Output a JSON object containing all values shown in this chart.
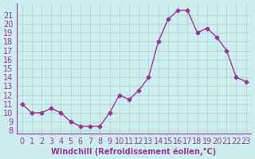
{
  "x": [
    0,
    1,
    2,
    3,
    4,
    5,
    6,
    7,
    8,
    9,
    10,
    11,
    12,
    13,
    14,
    15,
    16,
    17,
    18,
    19,
    20,
    21,
    22,
    23
  ],
  "y": [
    11,
    10,
    10,
    10.5,
    10,
    9,
    8.5,
    8.5,
    8.5,
    10,
    12,
    11.5,
    12.5,
    14,
    18,
    20.5,
    21.5,
    21.5,
    19,
    19.5,
    18.5,
    17,
    14,
    13.5
  ],
  "line_color": "#993399",
  "marker": "D",
  "marker_size": 2.5,
  "bg_color": "#cceeee",
  "grid_color": "#aacccc",
  "xlabel": "Windchill (Refroidissement éolien,°C)",
  "xlabel_color": "#993399",
  "tick_color": "#993399",
  "ylim": [
    8,
    22
  ],
  "xlim": [
    -0.5,
    23.5
  ],
  "yticks": [
    8,
    9,
    10,
    11,
    12,
    13,
    14,
    15,
    16,
    17,
    18,
    19,
    20,
    21
  ],
  "xticks": [
    0,
    1,
    2,
    3,
    4,
    5,
    6,
    7,
    8,
    9,
    10,
    11,
    12,
    13,
    14,
    15,
    16,
    17,
    18,
    19,
    20,
    21,
    22,
    23
  ],
  "font_size": 7,
  "line_width": 1.0
}
